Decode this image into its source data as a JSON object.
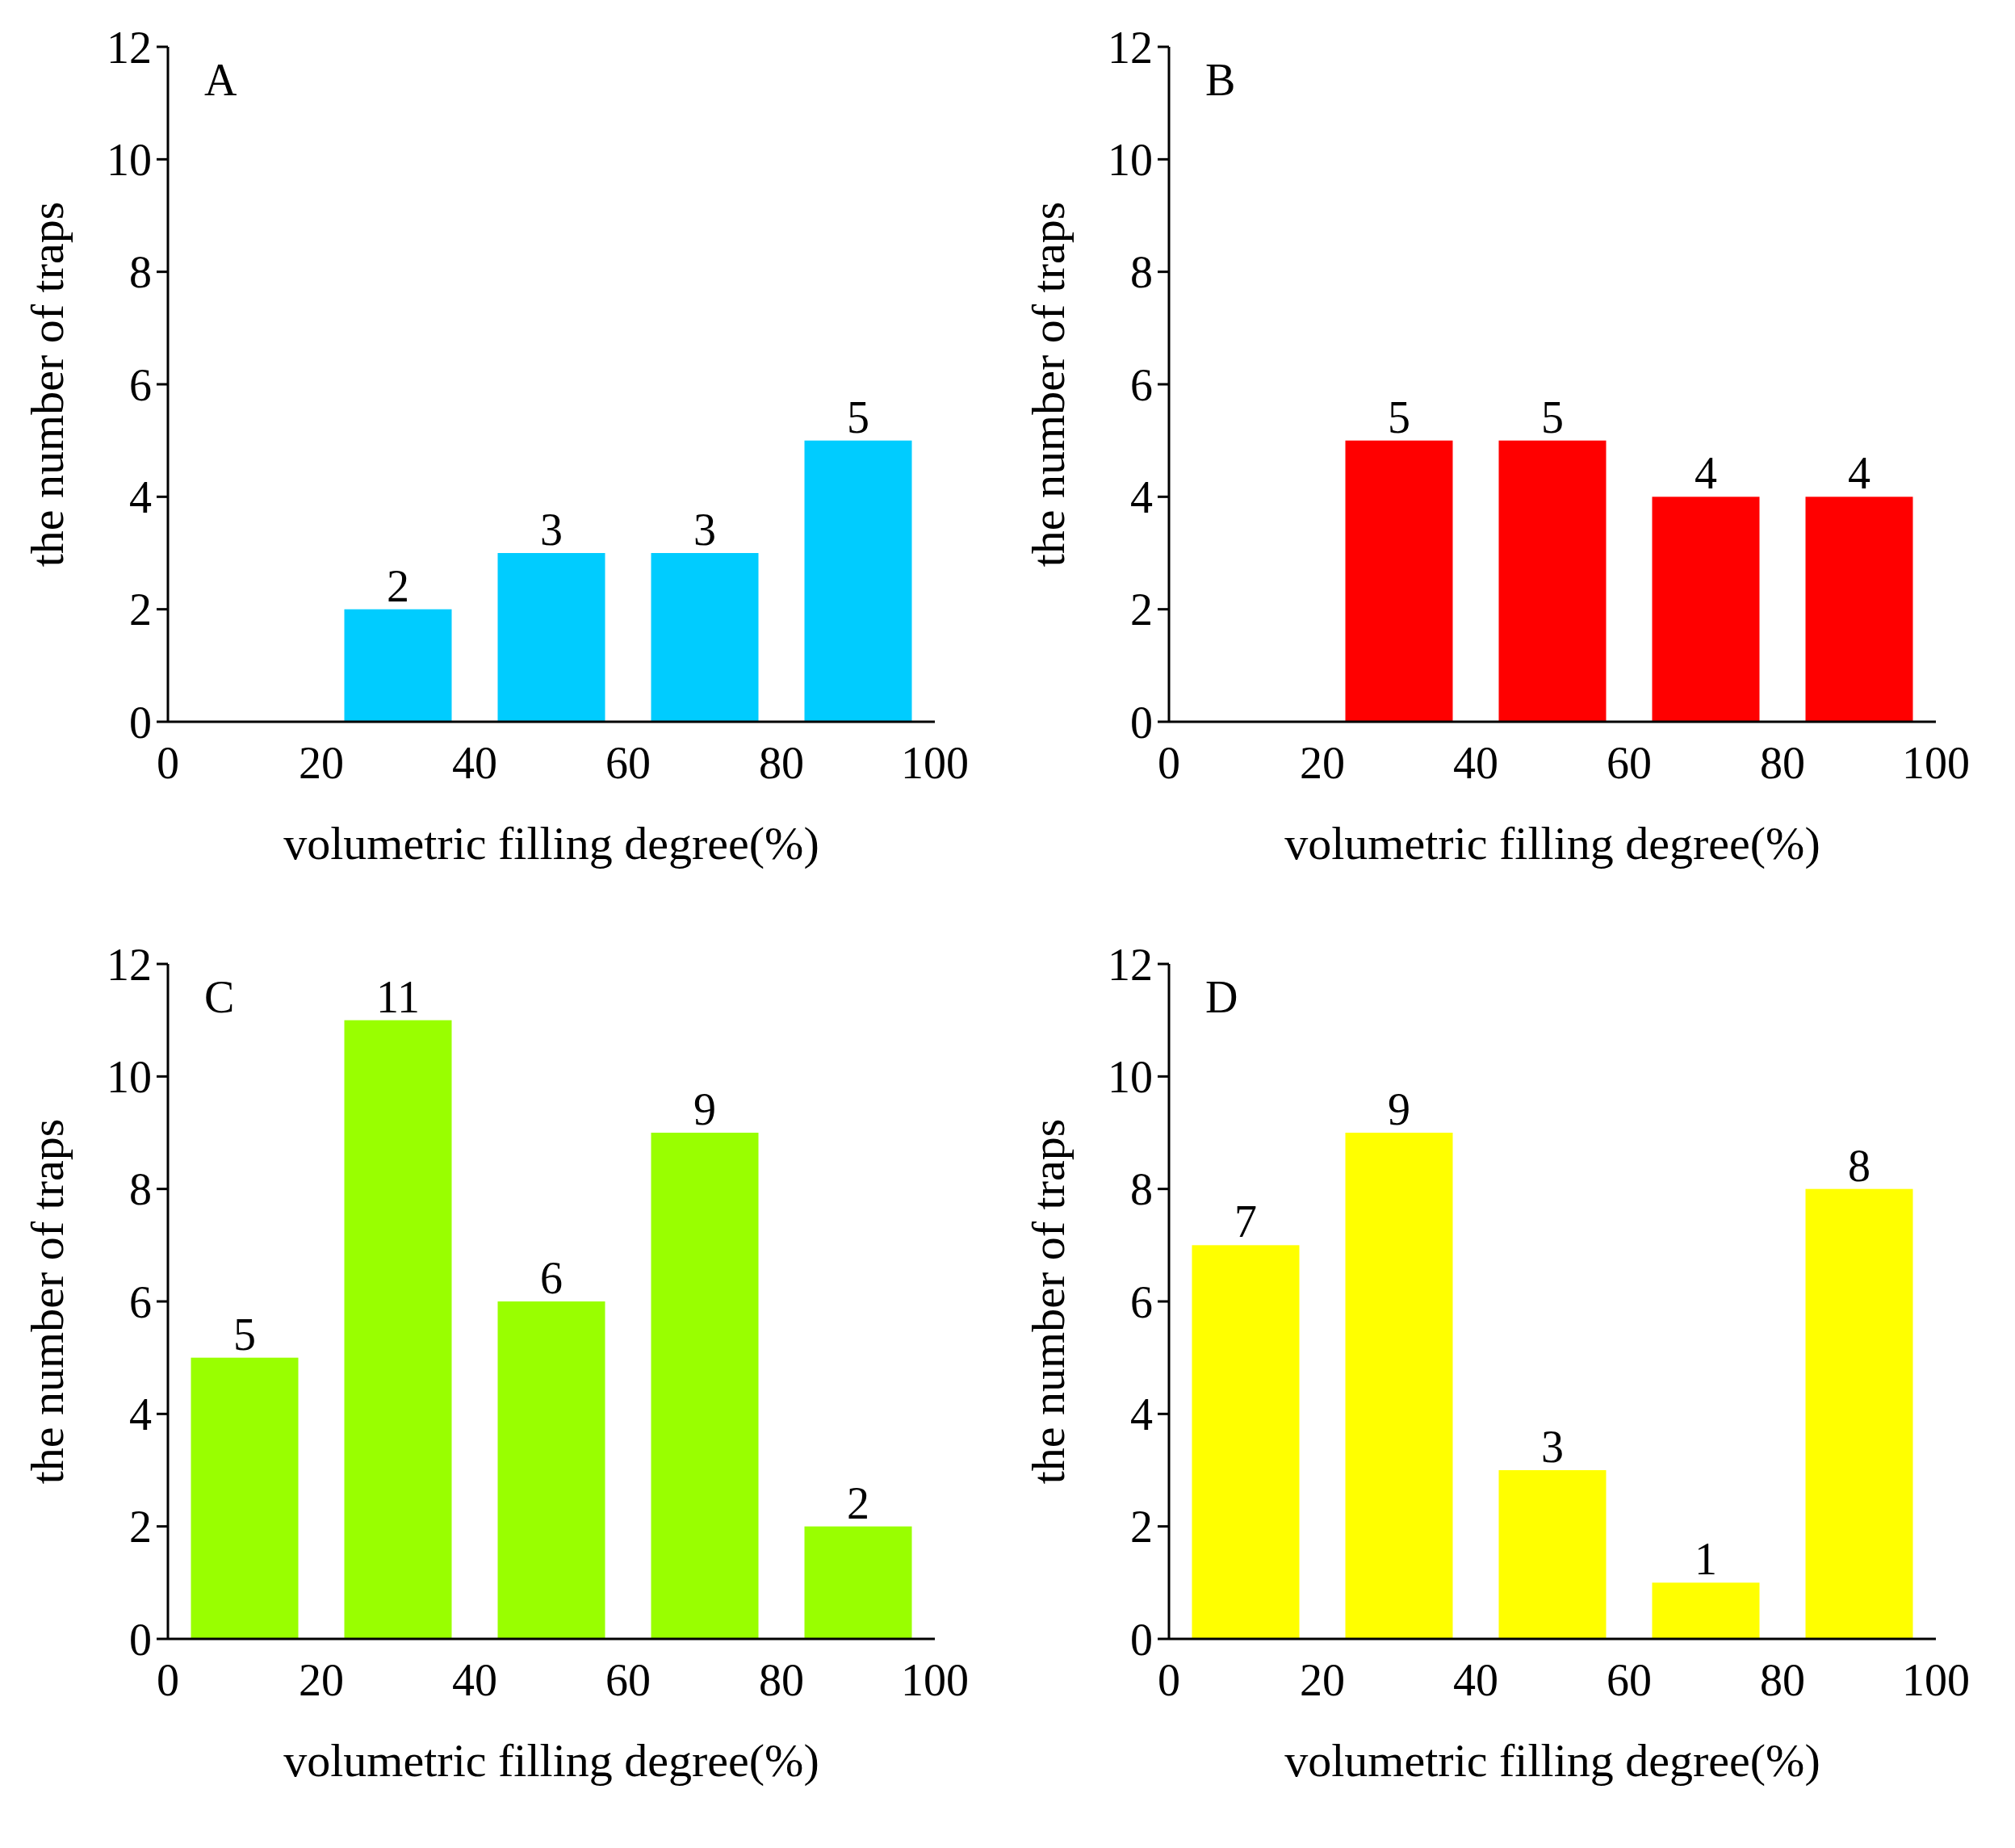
{
  "chart_data": [
    {
      "type": "bar",
      "annotations": [
        "A"
      ],
      "xlabel": "volumetric filling degree(%)",
      "ylabel": "the number of traps",
      "x": [
        30,
        50,
        70,
        90
      ],
      "values": [
        2,
        3,
        3,
        5
      ],
      "color": "#00ccff",
      "data_labels": true,
      "xlim": [
        0,
        100
      ],
      "xticks": [
        0,
        20,
        40,
        60,
        80,
        100
      ],
      "ylim": [
        0,
        12
      ],
      "yticks": [
        0,
        2,
        4,
        6,
        8,
        10,
        12
      ]
    },
    {
      "type": "bar",
      "annotations": [
        "B"
      ],
      "xlabel": "volumetric filling degree(%)",
      "ylabel": "the number of traps",
      "x": [
        30,
        50,
        70,
        90
      ],
      "values": [
        5,
        5,
        4,
        4
      ],
      "color": "#ff0000",
      "data_labels": true,
      "xlim": [
        0,
        100
      ],
      "xticks": [
        0,
        20,
        40,
        60,
        80,
        100
      ],
      "ylim": [
        0,
        12
      ],
      "yticks": [
        0,
        2,
        4,
        6,
        8,
        10,
        12
      ]
    },
    {
      "type": "bar",
      "annotations": [
        "C"
      ],
      "xlabel": "volumetric filling degree(%)",
      "ylabel": "the number of traps",
      "x": [
        10,
        30,
        50,
        70,
        90
      ],
      "values": [
        5,
        11,
        6,
        9,
        2
      ],
      "color": "#99ff00",
      "data_labels": true,
      "xlim": [
        0,
        100
      ],
      "xticks": [
        0,
        20,
        40,
        60,
        80,
        100
      ],
      "ylim": [
        0,
        12
      ],
      "yticks": [
        0,
        2,
        4,
        6,
        8,
        10,
        12
      ]
    },
    {
      "type": "bar",
      "annotations": [
        "D"
      ],
      "xlabel": "volumetric filling degree(%)",
      "ylabel": "the number of traps",
      "x": [
        10,
        30,
        50,
        70,
        90
      ],
      "values": [
        7,
        9,
        3,
        1,
        8
      ],
      "color": "#ffff00",
      "data_labels": true,
      "xlim": [
        0,
        100
      ],
      "xticks": [
        0,
        20,
        40,
        60,
        80,
        100
      ],
      "ylim": [
        0,
        12
      ],
      "yticks": [
        0,
        2,
        4,
        6,
        8,
        10,
        12
      ]
    }
  ]
}
